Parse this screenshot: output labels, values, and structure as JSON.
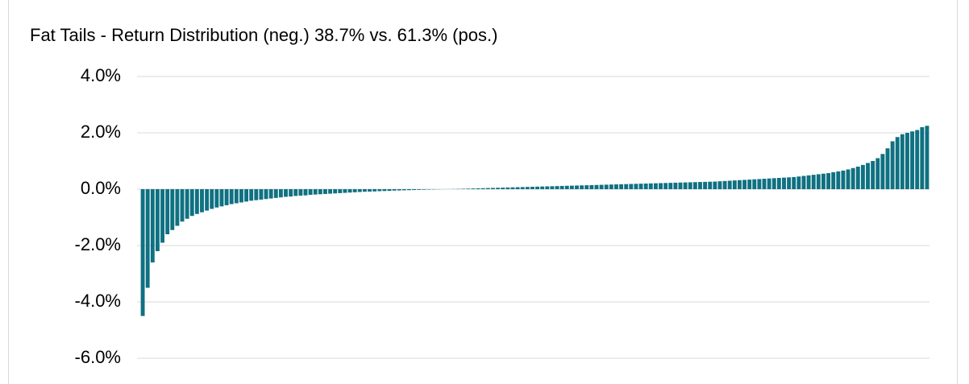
{
  "chart_data": {
    "type": "bar",
    "title": "Fat Tails - Return Distribution (neg.) 38.7% vs. 61.3% (pos.)",
    "color": "#0f7182",
    "grid": true,
    "ylim": [
      -6,
      4
    ],
    "yticks": [
      {
        "value": -6,
        "label": "-6.0%"
      },
      {
        "value": -4,
        "label": "-4.0%"
      },
      {
        "value": -2,
        "label": "-2.0%"
      },
      {
        "value": 0,
        "label": "0.0%"
      },
      {
        "value": 2,
        "label": "2.0%"
      },
      {
        "value": 4,
        "label": "4.0%"
      }
    ],
    "values": [
      -4.5,
      -3.5,
      -2.6,
      -2.2,
      -1.9,
      -1.6,
      -1.45,
      -1.3,
      -1.15,
      -1.05,
      -0.95,
      -0.88,
      -0.82,
      -0.76,
      -0.7,
      -0.65,
      -0.61,
      -0.57,
      -0.53,
      -0.5,
      -0.47,
      -0.44,
      -0.41,
      -0.39,
      -0.37,
      -0.35,
      -0.33,
      -0.31,
      -0.29,
      -0.27,
      -0.26,
      -0.24,
      -0.23,
      -0.22,
      -0.2,
      -0.19,
      -0.18,
      -0.17,
      -0.16,
      -0.15,
      -0.14,
      -0.13,
      -0.12,
      -0.11,
      -0.1,
      -0.09,
      -0.085,
      -0.08,
      -0.07,
      -0.065,
      -0.06,
      -0.05,
      -0.045,
      -0.04,
      -0.035,
      -0.03,
      -0.025,
      -0.02,
      -0.015,
      -0.01,
      -0.005,
      -0.002,
      0.002,
      0.005,
      0.01,
      0.015,
      0.02,
      0.025,
      0.03,
      0.035,
      0.04,
      0.045,
      0.05,
      0.055,
      0.06,
      0.065,
      0.07,
      0.075,
      0.08,
      0.085,
      0.09,
      0.095,
      0.1,
      0.105,
      0.11,
      0.115,
      0.12,
      0.125,
      0.13,
      0.135,
      0.14,
      0.145,
      0.15,
      0.155,
      0.16,
      0.165,
      0.17,
      0.175,
      0.18,
      0.185,
      0.19,
      0.195,
      0.2,
      0.205,
      0.21,
      0.215,
      0.22,
      0.225,
      0.23,
      0.235,
      0.24,
      0.245,
      0.25,
      0.255,
      0.26,
      0.265,
      0.27,
      0.28,
      0.29,
      0.3,
      0.31,
      0.32,
      0.33,
      0.34,
      0.35,
      0.36,
      0.37,
      0.38,
      0.39,
      0.4,
      0.41,
      0.42,
      0.43,
      0.45,
      0.47,
      0.49,
      0.51,
      0.53,
      0.55,
      0.57,
      0.6,
      0.63,
      0.66,
      0.7,
      0.75,
      0.8,
      0.86,
      0.93,
      1.0,
      1.1,
      1.25,
      1.45,
      1.7,
      1.85,
      1.95,
      2.0,
      2.05,
      2.1,
      2.2,
      2.25
    ]
  }
}
